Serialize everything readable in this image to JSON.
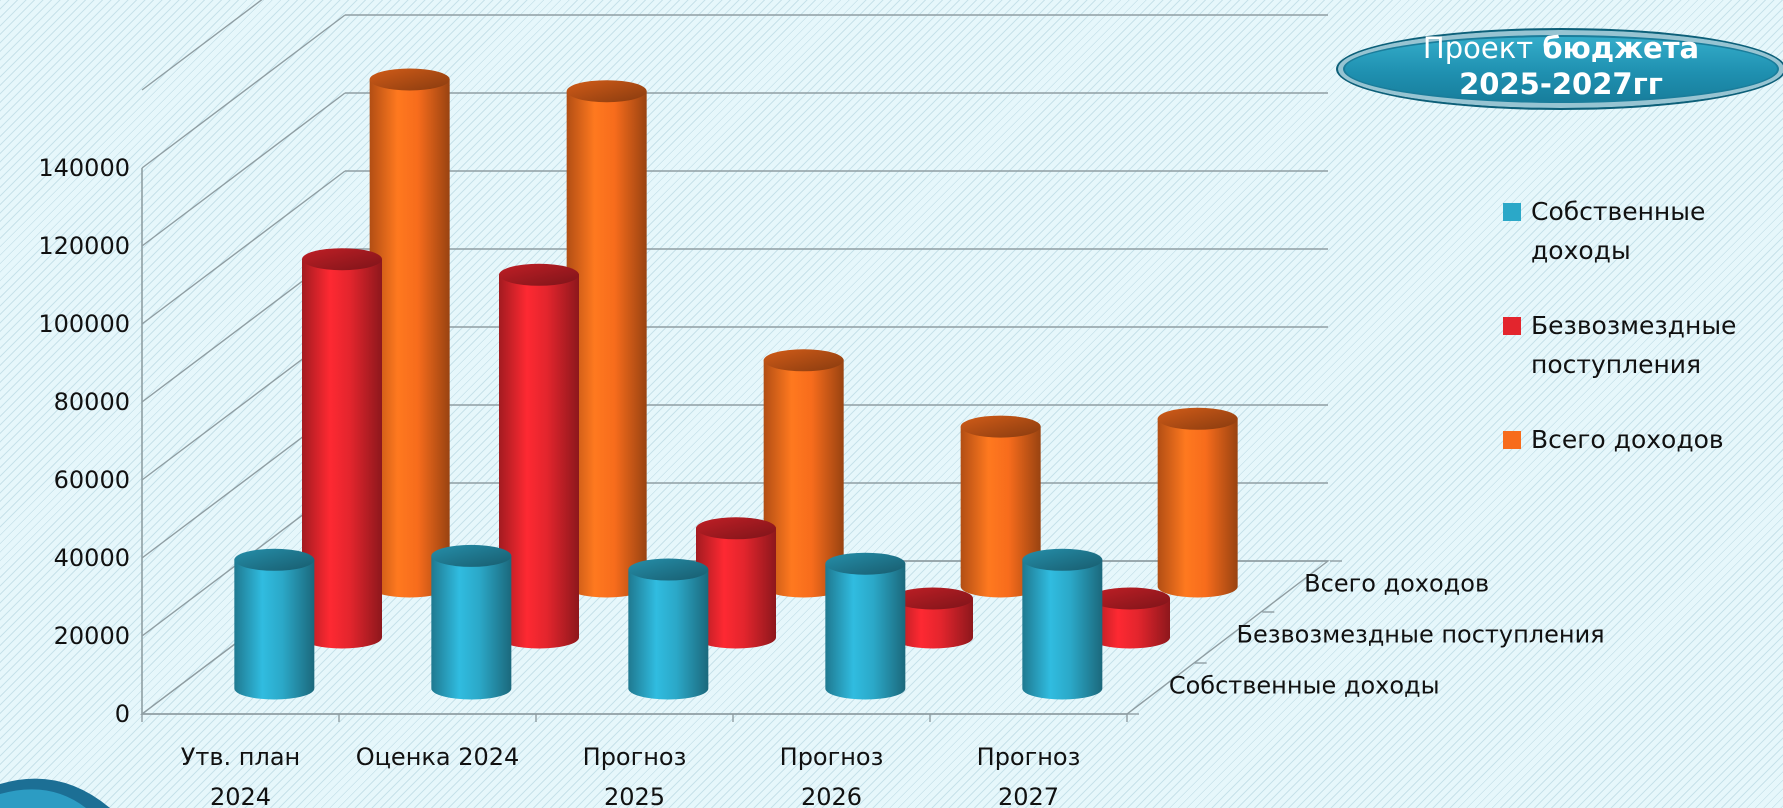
{
  "chart_data": {
    "type": "bar",
    "style": "3d-cylinder",
    "title": {
      "prefix": "Проект",
      "emphasis": "бюджета",
      "line2": "2025-2027гг"
    },
    "categories": [
      "Утв. план\n2024",
      "Оценка 2024",
      "Прогноз\n2025",
      "Прогноз\n2026",
      "Прогноз\n2027"
    ],
    "series": [
      {
        "name": "Собственные доходы",
        "legend_lines": [
          "Собственные",
          "доходы"
        ],
        "color": "#2ba8c8",
        "values": [
          33000,
          34000,
          30500,
          32000,
          33000
        ]
      },
      {
        "name": "Безвозмездные поступления",
        "legend_lines": [
          "Безвозмездные",
          "поступления"
        ],
        "color": "#e3252d",
        "values": [
          97000,
          93000,
          28000,
          10000,
          10000
        ]
      },
      {
        "name": "Всего доходов",
        "legend_lines": [
          "Всего доходов"
        ],
        "color": "#f76c1c",
        "values": [
          130000,
          127000,
          58000,
          41000,
          43000
        ]
      }
    ],
    "y_ticks": [
      "0",
      "20000",
      "40000",
      "60000",
      "80000",
      "100000",
      "120000",
      "140000"
    ],
    "ylim": [
      0,
      140000
    ],
    "depth_labels": [
      "Собственные доходы",
      "Безвозмездные поступления",
      "Всего доходов"
    ],
    "grid": true,
    "legend_position": "right"
  }
}
